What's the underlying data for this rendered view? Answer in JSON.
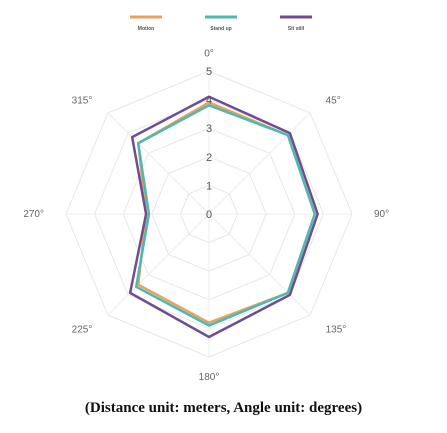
{
  "chart_data": {
    "type": "radar",
    "axes": [
      "0°",
      "45°",
      "90°",
      "135°",
      "180°",
      "225°",
      "270°",
      "315°"
    ],
    "angles_deg": [
      0,
      45,
      90,
      135,
      180,
      225,
      270,
      315
    ],
    "rlim": [
      0,
      5
    ],
    "r_ticks": [
      "0",
      "1",
      "2",
      "3",
      "4",
      "5"
    ],
    "grid": true,
    "legend_position": "top",
    "series": [
      {
        "name": "Motion",
        "color": "#e8a25c",
        "values": [
          3.9,
          3.9,
          3.7,
          3.9,
          3.8,
          3.5,
          2.2,
          3.5
        ]
      },
      {
        "name": "Stand up",
        "color": "#4fb8b0",
        "values": [
          3.8,
          3.9,
          3.7,
          3.9,
          3.9,
          3.6,
          2.1,
          3.5
        ]
      },
      {
        "name": "Sit still",
        "color": "#6d4f91",
        "values": [
          4.1,
          4.0,
          3.8,
          4.0,
          4.3,
          3.9,
          2.2,
          3.8
        ]
      }
    ],
    "caption": "(Distance unit: meters, Angle unit: degrees)"
  }
}
